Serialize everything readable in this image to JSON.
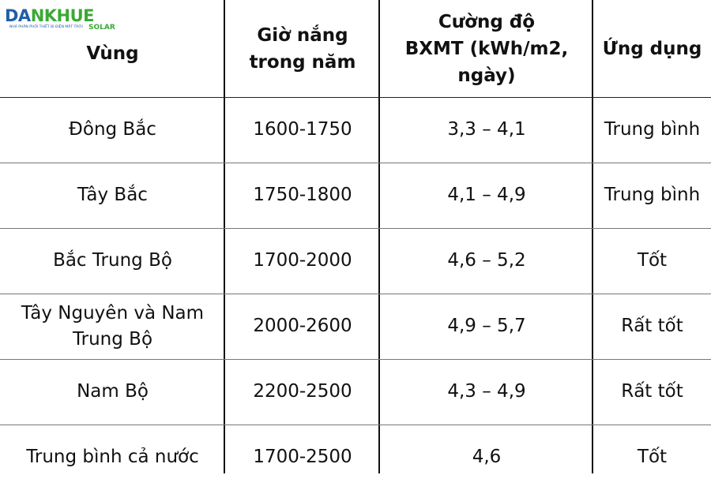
{
  "logo": {
    "name_a": "DA",
    "name_b": "NKHUE",
    "tagline": "NHÀ PHÂN PHỐI THIẾT BỊ ĐIỆN MẶT TRỜI",
    "suffix": "SOLAR"
  },
  "table": {
    "header": [
      "Vùng",
      "Giờ nắng\ntrong năm",
      "Cường độ\nBXMT (kWh/m2,\nngày)",
      "Ứng dụng"
    ],
    "rows": [
      [
        "Đông Bắc",
        "1600-1750",
        "3,3 – 4,1",
        "Trung bình"
      ],
      [
        "Tây Bắc",
        "1750-1800",
        "4,1 – 4,9",
        "Trung bình"
      ],
      [
        "Bắc Trung Bộ",
        "1700-2000",
        "4,6 – 5,2",
        "Tốt"
      ],
      [
        "Tây Nguyên và Nam\nTrung Bộ",
        "2000-2600",
        "4,9 – 5,7",
        "Rất tốt"
      ],
      [
        "Nam Bộ",
        "2200-2500",
        "4,3 – 4,9",
        "Rất tốt"
      ],
      [
        "Trung bình cả nước",
        "1700-2500",
        "4,6",
        "Tốt"
      ]
    ]
  }
}
